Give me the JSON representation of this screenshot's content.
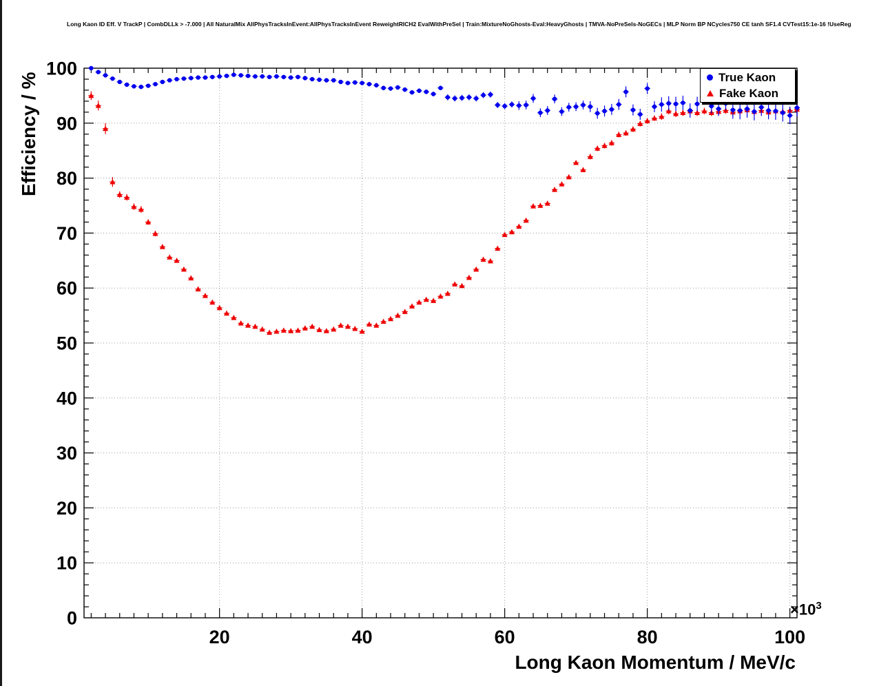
{
  "title": "Long Kaon ID Eff. V TrackP | CombDLLk > -7.000 | All NaturalMix AllPhysTracksInEvent:AllPhysTracksInEvent ReweightRICH2 EvalWithPreSel | Train:MixtureNoGhosts-Eval:HeavyGhosts | TMVA-NoPreSels-NoGECs | MLP Norm BP NCycles750 CE tanh SF1.4 CVTest15:1e-16 !UseReg",
  "axes": {
    "x_mult_base": "×10",
    "x_mult_exp": "3"
  },
  "legend": {
    "position": "top-right"
  },
  "colors": {
    "true_kaon": "#0000ee",
    "fake_kaon": "#ee0000",
    "grid": "#999999",
    "frame": "#000000"
  },
  "chart_data": {
    "type": "scatter",
    "title": "Long Kaon ID Eff. V TrackP | CombDLLk > -7.000 | All NaturalMix AllPhysTracksInEvent:AllPhysTracksInEvent ReweightRICH2 EvalWithPreSel | Train:MixtureNoGhosts-Eval:HeavyGhosts | TMVA-NoPreSels-NoGECs | MLP Norm BP NCycles750 CE tanh SF1.4 CVTest15:1e-16 !UseReg",
    "xlabel": "Long Kaon Momentum / MeV/c",
    "ylabel": "Efficiency / %",
    "x_unit_multiplier": 1000,
    "xlim": [
      1,
      101
    ],
    "ylim": [
      0,
      100
    ],
    "x_ticks": [
      20,
      40,
      60,
      80,
      100
    ],
    "y_ticks": [
      0,
      10,
      20,
      30,
      40,
      50,
      60,
      70,
      80,
      90,
      100
    ],
    "grid": true,
    "legend_position": "top-right",
    "x": [
      2,
      3,
      4,
      5,
      6,
      7,
      8,
      9,
      10,
      11,
      12,
      13,
      14,
      15,
      16,
      17,
      18,
      19,
      20,
      21,
      22,
      23,
      24,
      25,
      26,
      27,
      28,
      29,
      30,
      31,
      32,
      33,
      34,
      35,
      36,
      37,
      38,
      39,
      40,
      41,
      42,
      43,
      44,
      45,
      46,
      47,
      48,
      49,
      50,
      51,
      52,
      53,
      54,
      55,
      56,
      57,
      58,
      59,
      60,
      61,
      62,
      63,
      64,
      65,
      66,
      67,
      68,
      69,
      70,
      71,
      72,
      73,
      74,
      75,
      76,
      77,
      78,
      79,
      80,
      81,
      82,
      83,
      84,
      85,
      86,
      87,
      88,
      89,
      90,
      91,
      92,
      93,
      94,
      95,
      96,
      97,
      98,
      99,
      100,
      101
    ],
    "series": [
      {
        "name": "True Kaon",
        "marker": "circle",
        "color": "#0000ee",
        "y": [
          100.0,
          99.3,
          98.7,
          98.1,
          97.5,
          97.0,
          96.7,
          96.6,
          96.8,
          97.1,
          97.5,
          97.8,
          98.0,
          98.1,
          98.2,
          98.3,
          98.3,
          98.4,
          98.5,
          98.6,
          98.8,
          98.7,
          98.6,
          98.5,
          98.5,
          98.4,
          98.5,
          98.4,
          98.3,
          98.4,
          98.2,
          98.0,
          97.9,
          97.8,
          97.8,
          97.5,
          97.3,
          97.4,
          97.3,
          97.1,
          96.9,
          96.4,
          96.3,
          96.5,
          96.1,
          95.6,
          95.9,
          95.7,
          95.3,
          96.4,
          94.7,
          94.5,
          94.6,
          94.7,
          94.5,
          95.1,
          95.2,
          93.3,
          93.1,
          93.4,
          93.2,
          93.3,
          94.5,
          91.9,
          92.3,
          94.4,
          92.1,
          92.9,
          93.0,
          93.3,
          93.0,
          91.8,
          92.2,
          92.5,
          93.4,
          95.7,
          92.4,
          91.6,
          96.3,
          93.0,
          93.4,
          93.6,
          93.5,
          93.7,
          92.3,
          93.5,
          95.9,
          93.1,
          92.6,
          93.6,
          92.4,
          92.3,
          92.6,
          92.1,
          92.9,
          92.3,
          92.2,
          91.9,
          91.4,
          92.8
        ],
        "yerr": [
          0.2,
          0.2,
          0.2,
          0.2,
          0.2,
          0.2,
          0.2,
          0.2,
          0.2,
          0.2,
          0.2,
          0.2,
          0.2,
          0.2,
          0.2,
          0.2,
          0.2,
          0.2,
          0.2,
          0.2,
          0.25,
          0.25,
          0.25,
          0.25,
          0.25,
          0.25,
          0.25,
          0.25,
          0.25,
          0.25,
          0.25,
          0.25,
          0.25,
          0.25,
          0.25,
          0.25,
          0.25,
          0.25,
          0.25,
          0.25,
          0.4,
          0.4,
          0.4,
          0.4,
          0.4,
          0.4,
          0.4,
          0.4,
          0.4,
          0.4,
          0.55,
          0.55,
          0.55,
          0.55,
          0.55,
          0.55,
          0.55,
          0.55,
          0.55,
          0.55,
          0.8,
          0.8,
          0.8,
          0.8,
          0.8,
          0.8,
          0.8,
          0.8,
          0.8,
          0.8,
          1.0,
          1.0,
          1.0,
          1.0,
          1.0,
          1.0,
          1.0,
          1.0,
          1.0,
          1.0,
          1.3,
          1.3,
          1.3,
          1.3,
          1.3,
          1.3,
          1.3,
          1.3,
          1.3,
          1.3,
          1.6,
          1.6,
          1.6,
          1.6,
          1.6,
          1.6,
          1.6,
          1.6,
          1.6,
          1.6
        ]
      },
      {
        "name": "Fake Kaon",
        "marker": "triangle",
        "color": "#ee0000",
        "y": [
          95.0,
          93.2,
          89.0,
          79.3,
          77.0,
          76.5,
          74.8,
          74.3,
          72.0,
          69.9,
          67.5,
          65.6,
          65.0,
          63.4,
          61.8,
          59.8,
          58.6,
          57.4,
          56.4,
          55.4,
          54.6,
          53.6,
          53.2,
          53.0,
          52.5,
          51.9,
          52.1,
          52.3,
          52.2,
          52.3,
          52.7,
          53.0,
          52.4,
          52.2,
          52.5,
          53.2,
          53.0,
          52.6,
          52.1,
          53.4,
          53.2,
          53.9,
          54.4,
          55.0,
          55.7,
          56.7,
          57.4,
          57.9,
          57.7,
          58.5,
          59.0,
          60.7,
          60.4,
          61.9,
          63.4,
          65.2,
          64.9,
          67.2,
          69.7,
          70.2,
          71.2,
          72.3,
          74.9,
          75.0,
          75.4,
          77.9,
          78.9,
          80.2,
          82.8,
          81.5,
          83.9,
          85.4,
          85.9,
          86.4,
          87.9,
          88.2,
          88.9,
          89.9,
          90.4,
          90.9,
          91.2,
          92.2,
          91.7,
          91.9,
          92.2,
          91.9,
          92.2,
          91.9,
          92.1,
          92.3,
          92.0,
          92.2,
          92.4,
          92.1,
          92.3,
          92.0,
          92.2,
          92.1,
          92.3,
          92.5
        ],
        "yerr": [
          0.8,
          0.9,
          1.0,
          0.9,
          0.6,
          0.6,
          0.6,
          0.6,
          0.5,
          0.5,
          0.4,
          0.4,
          0.4,
          0.4,
          0.4,
          0.4,
          0.4,
          0.4,
          0.4,
          0.4,
          0.3,
          0.3,
          0.3,
          0.3,
          0.3,
          0.3,
          0.3,
          0.3,
          0.3,
          0.3,
          0.3,
          0.3,
          0.3,
          0.3,
          0.3,
          0.3,
          0.3,
          0.3,
          0.3,
          0.3,
          0.3,
          0.3,
          0.3,
          0.3,
          0.3,
          0.3,
          0.3,
          0.3,
          0.3,
          0.3,
          0.3,
          0.3,
          0.3,
          0.3,
          0.3,
          0.3,
          0.3,
          0.3,
          0.3,
          0.3,
          0.4,
          0.4,
          0.4,
          0.4,
          0.4,
          0.4,
          0.4,
          0.4,
          0.4,
          0.4,
          0.5,
          0.5,
          0.5,
          0.5,
          0.5,
          0.5,
          0.5,
          0.5,
          0.5,
          0.5,
          0.6,
          0.6,
          0.6,
          0.6,
          0.6,
          0.6,
          0.6,
          0.6,
          0.6,
          0.6,
          0.7,
          0.7,
          0.7,
          0.7,
          0.7,
          0.7,
          0.7,
          0.7,
          0.7,
          0.7
        ]
      }
    ]
  }
}
